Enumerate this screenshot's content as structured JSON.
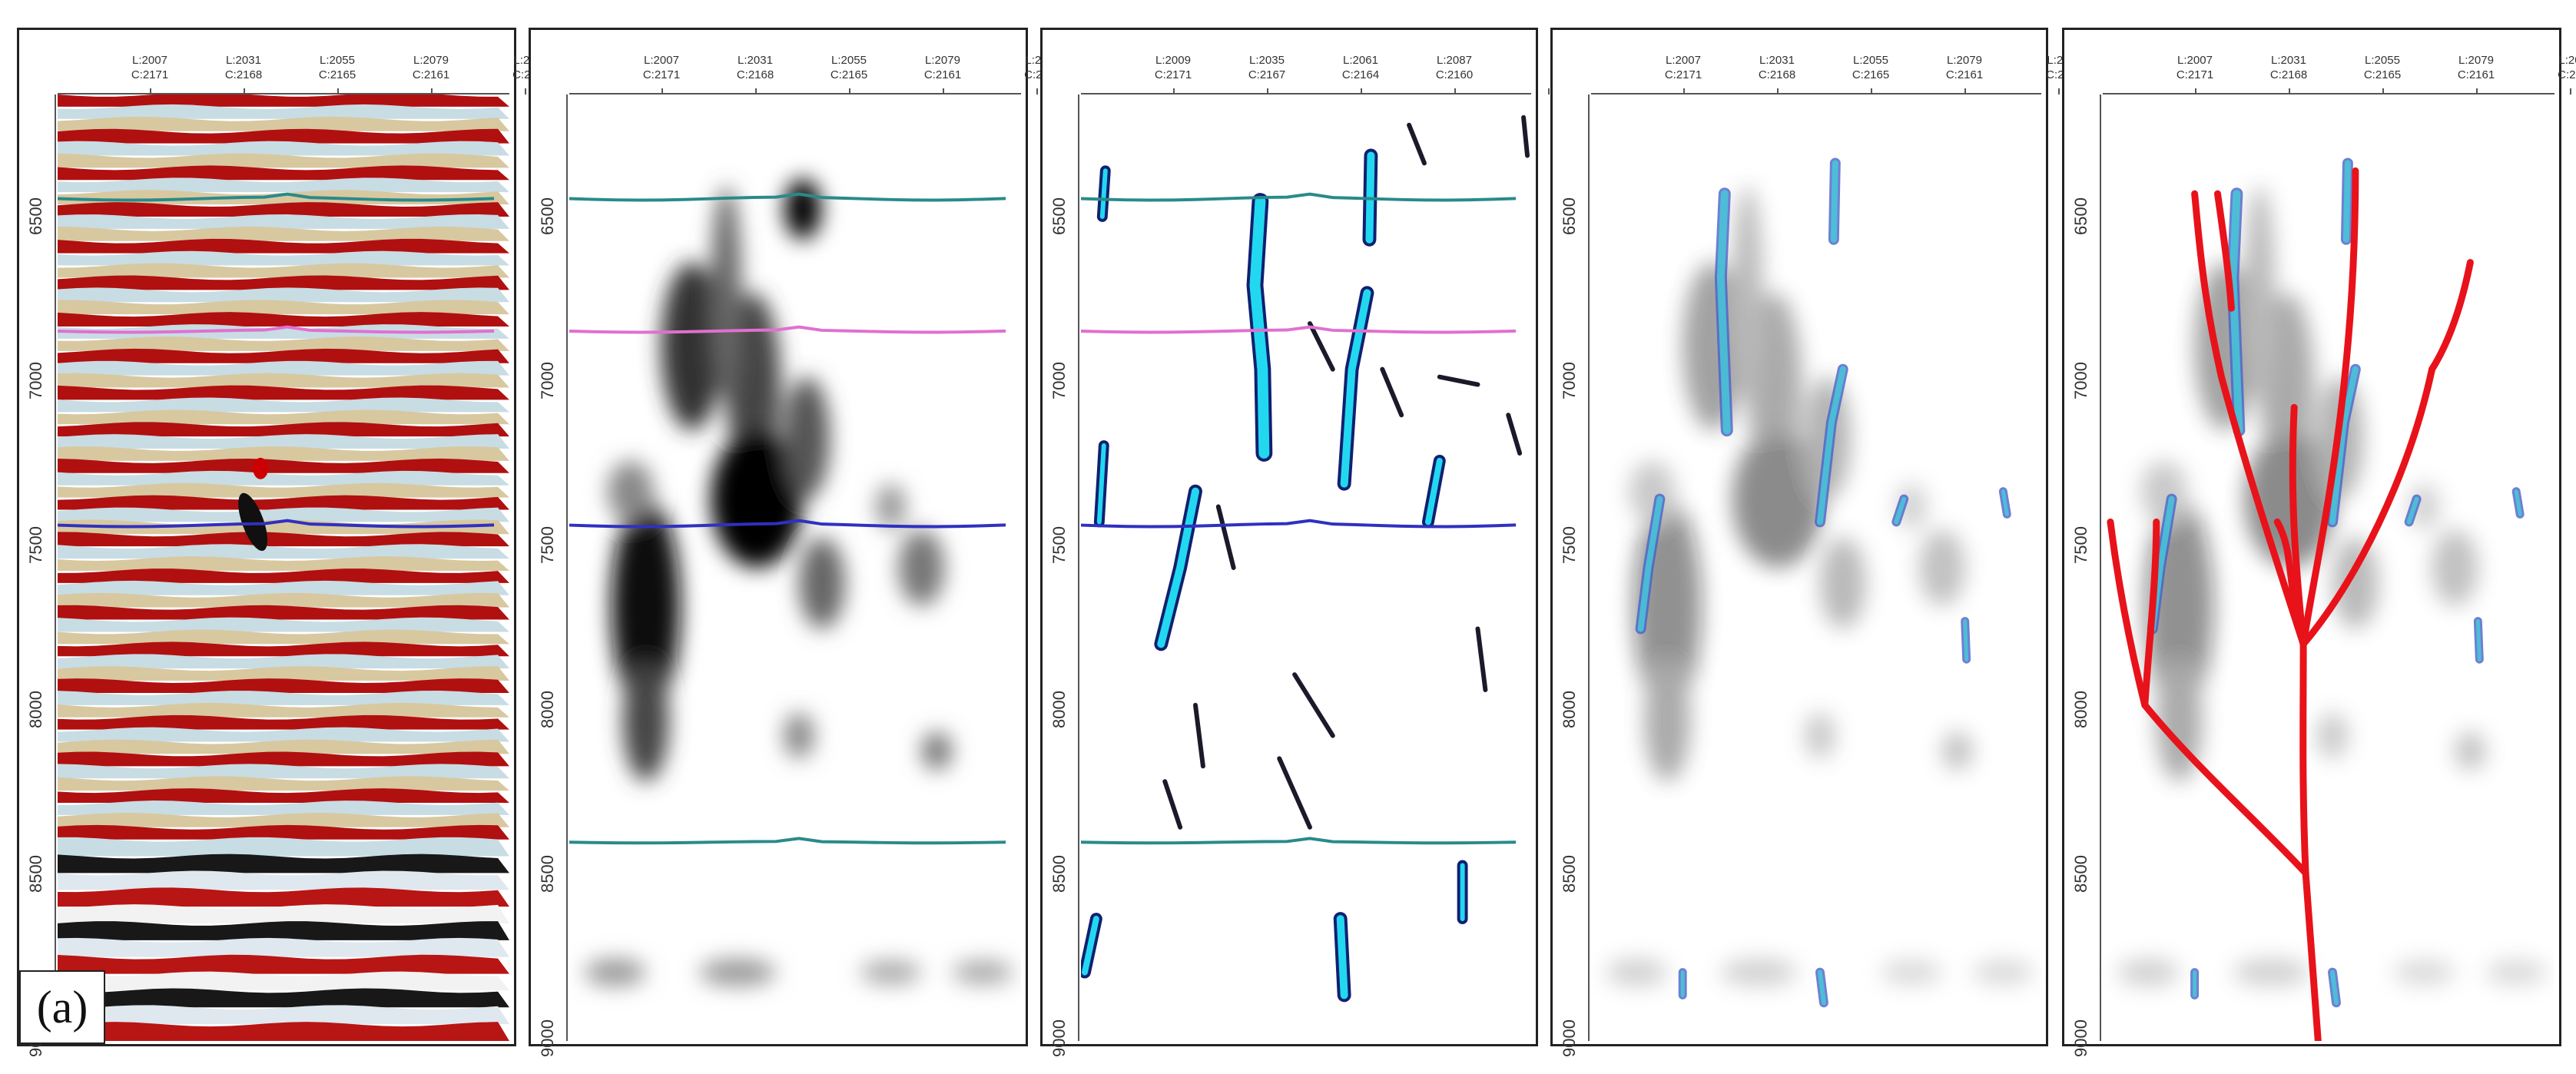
{
  "figure": {
    "panel_label": "(a)",
    "y_ticks": [
      "6500",
      "7000",
      "7500",
      "8000",
      "8500",
      "9000"
    ],
    "x_ticks_a": [
      "L:2007\nC:2171",
      "L:2031\nC:2168",
      "L:2055\nC:2165",
      "L:2079\nC:2161",
      "L:20\nC:21"
    ],
    "x_ticks_c": [
      "L:2009\nC:2171",
      "L:2035\nC:2167",
      "L:2061\nC:2164",
      "L:2087\nC:2160",
      ""
    ]
  },
  "panels": [
    {
      "id": "seismic-amplitude",
      "ticks": "x_ticks_a"
    },
    {
      "id": "attribute-grayscale",
      "ticks": "x_ticks_a"
    },
    {
      "id": "fracture-detection",
      "ticks": "x_ticks_c"
    },
    {
      "id": "overlay",
      "ticks": "x_ticks_a"
    },
    {
      "id": "overlay-interpretation",
      "ticks": "x_ticks_a"
    }
  ],
  "colors": {
    "horizon_teal": "#2a8a8a",
    "horizon_pink": "#e070d0",
    "horizon_blue": "#3030c0",
    "cyan_body": "#22d8f0",
    "dark_blue": "#102070",
    "interpretation_red": "#e8121a"
  }
}
